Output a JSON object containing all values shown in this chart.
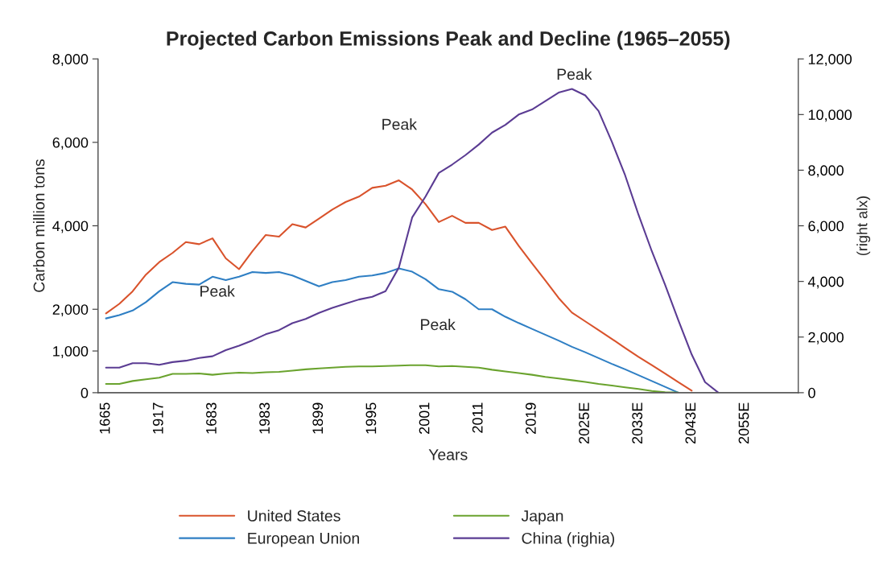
{
  "chart_data": {
    "type": "line",
    "title": "Projected Carbon Emissions Peak and Decline (1965–2055)",
    "xlabel": "Years",
    "ylabel": "Carbon million tons",
    "y2label": "(right alx)",
    "categories": [
      "1665",
      null,
      null,
      null,
      "1917",
      null,
      null,
      null,
      "1683",
      null,
      null,
      null,
      "1983",
      null,
      null,
      null,
      "1899",
      null,
      null,
      null,
      "1995",
      null,
      null,
      null,
      "2001",
      null,
      null,
      null,
      "2011",
      null,
      null,
      null,
      "2019",
      null,
      null,
      null,
      "2025E",
      null,
      null,
      null,
      "2033E",
      null,
      null,
      null,
      "2043E",
      null,
      null,
      null,
      "2055E",
      null,
      null,
      null,
      null
    ],
    "series": [
      {
        "name": "United States",
        "color": "#d9532c",
        "values": [
          1900,
          2130,
          2430,
          2830,
          3130,
          3350,
          3610,
          3560,
          3700,
          3220,
          2960,
          3390,
          3780,
          3740,
          4040,
          3960,
          4170,
          4390,
          4570,
          4700,
          4910,
          4960,
          5090,
          4870,
          4520,
          4090,
          4240,
          4070,
          4070,
          3900,
          3980,
          3520,
          3100,
          2690,
          2270,
          1920,
          1710,
          1500,
          1290,
          1070,
          860,
          660,
          460,
          250,
          50,
          null,
          null,
          null,
          null,
          null,
          null,
          null,
          null
        ]
      },
      {
        "name": "European Union",
        "color": "#2f7fc4",
        "values": [
          1780,
          1860,
          1970,
          2170,
          2430,
          2650,
          2610,
          2590,
          2780,
          2700,
          2780,
          2890,
          2870,
          2890,
          2810,
          2680,
          2550,
          2650,
          2700,
          2780,
          2810,
          2870,
          2980,
          2900,
          2720,
          2480,
          2420,
          2240,
          2000,
          2000,
          1820,
          1670,
          1530,
          1390,
          1250,
          1100,
          970,
          830,
          690,
          560,
          420,
          280,
          140,
          0,
          null,
          null,
          null,
          null,
          null,
          null,
          null,
          null,
          null
        ]
      },
      {
        "name": "Japan",
        "color": "#6aa32e",
        "values": [
          210,
          210,
          280,
          320,
          360,
          450,
          450,
          460,
          430,
          460,
          480,
          470,
          490,
          500,
          530,
          560,
          580,
          600,
          620,
          630,
          630,
          640,
          650,
          660,
          660,
          630,
          640,
          620,
          600,
          550,
          510,
          470,
          430,
          380,
          340,
          300,
          260,
          210,
          170,
          130,
          90,
          40,
          10,
          0,
          null,
          null,
          null,
          null,
          null,
          null,
          null,
          null,
          null
        ]
      },
      {
        "name": "China (righia)",
        "color": "#5b3c93",
        "axis": "y2",
        "values": [
          900,
          900,
          1060,
          1060,
          1000,
          1100,
          1150,
          1250,
          1310,
          1530,
          1690,
          1880,
          2100,
          2250,
          2500,
          2650,
          2870,
          3050,
          3200,
          3350,
          3450,
          3650,
          4500,
          6300,
          7050,
          7900,
          8200,
          8540,
          8920,
          9350,
          9630,
          10000,
          10180,
          10480,
          10790,
          10920,
          10690,
          10130,
          9020,
          7810,
          6400,
          5090,
          3880,
          2600,
          1370,
          380,
          0,
          null,
          null,
          null,
          null,
          null,
          null
        ]
      }
    ],
    "ylim": [
      0,
      8000
    ],
    "yticks": [
      0,
      {
        "value": 1000,
        "label": "1,000"
      },
      {
        "value": 2000,
        "label": "2,000"
      },
      {
        "value": 4000,
        "label": "4,000"
      },
      {
        "value": 6000,
        "label": "6,000"
      },
      {
        "value": 8000,
        "label": "8,000"
      }
    ],
    "y2lim": [
      0,
      12000
    ],
    "y2ticks": [
      0,
      {
        "value": 2000,
        "label": "2,000"
      },
      {
        "value": 4000,
        "label": "4,000"
      },
      {
        "value": 6000,
        "label": "6,000"
      },
      {
        "value": 8000,
        "label": "8,000"
      },
      {
        "value": 10000,
        "label": "10,000"
      },
      {
        "value": 12000,
        "label": "12,000"
      }
    ],
    "annotations": [
      "Peak",
      "Peak",
      "Peak",
      "Peak"
    ],
    "legend": "bottom",
    "grid": false,
    "marker": "none",
    "line_style": "solid"
  }
}
